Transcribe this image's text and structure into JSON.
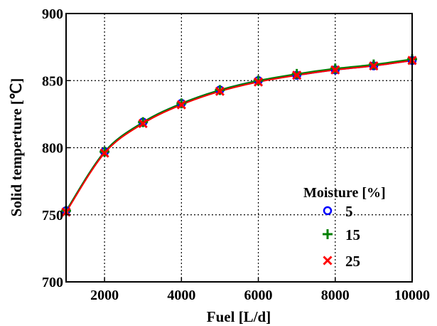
{
  "chart_data": {
    "type": "line",
    "xlabel": "Fuel [L/d]",
    "ylabel": "Solid temperture [℃]",
    "xlim": [
      1000,
      10000
    ],
    "ylim": [
      700,
      900
    ],
    "xticks": [
      2000,
      4000,
      6000,
      8000,
      10000
    ],
    "yticks": [
      700,
      750,
      800,
      850,
      900
    ],
    "grid": true,
    "legend_title": "Moisture [%]",
    "legend_position": "bottom-right",
    "x": [
      1000,
      2000,
      3000,
      4000,
      5000,
      6000,
      7000,
      8000,
      9000,
      10000
    ],
    "series": [
      {
        "name": "5",
        "marker": "circle",
        "color": "#0000ff",
        "values": [
          753,
          797,
          819,
          833,
          843,
          850,
          854,
          858,
          861,
          865
        ]
      },
      {
        "name": "15",
        "marker": "plus",
        "color": "#008000",
        "values": [
          753,
          797,
          819,
          833,
          843,
          850,
          855,
          859,
          862,
          866
        ]
      },
      {
        "name": "25",
        "marker": "x",
        "color": "#ff0000",
        "values": [
          752,
          796,
          818,
          832,
          842,
          849,
          854,
          858,
          861,
          865
        ]
      }
    ]
  }
}
